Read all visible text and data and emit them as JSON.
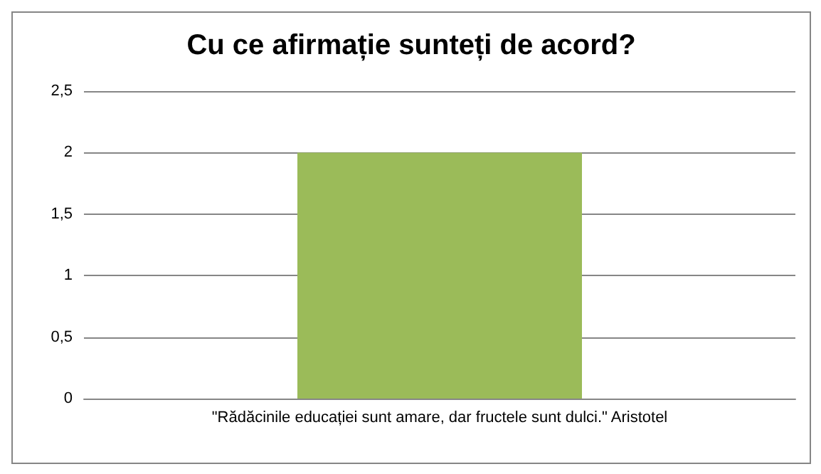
{
  "chart_data": {
    "type": "bar",
    "title": "Cu ce afirmație sunteți de acord?",
    "categories": [
      "\"Rădăcinile educației sunt amare, dar fructele sunt dulci.\" Aristotel"
    ],
    "values": [
      2
    ],
    "color": "#9bbb59",
    "ylim": [
      0,
      2.5
    ],
    "yticks": [
      0,
      {
        "value": 0.5,
        "label": "0,5"
      },
      1,
      {
        "value": 1.5,
        "label": "1,5"
      },
      2,
      {
        "value": 2.5,
        "label": "2,5"
      }
    ],
    "grid": "y"
  }
}
